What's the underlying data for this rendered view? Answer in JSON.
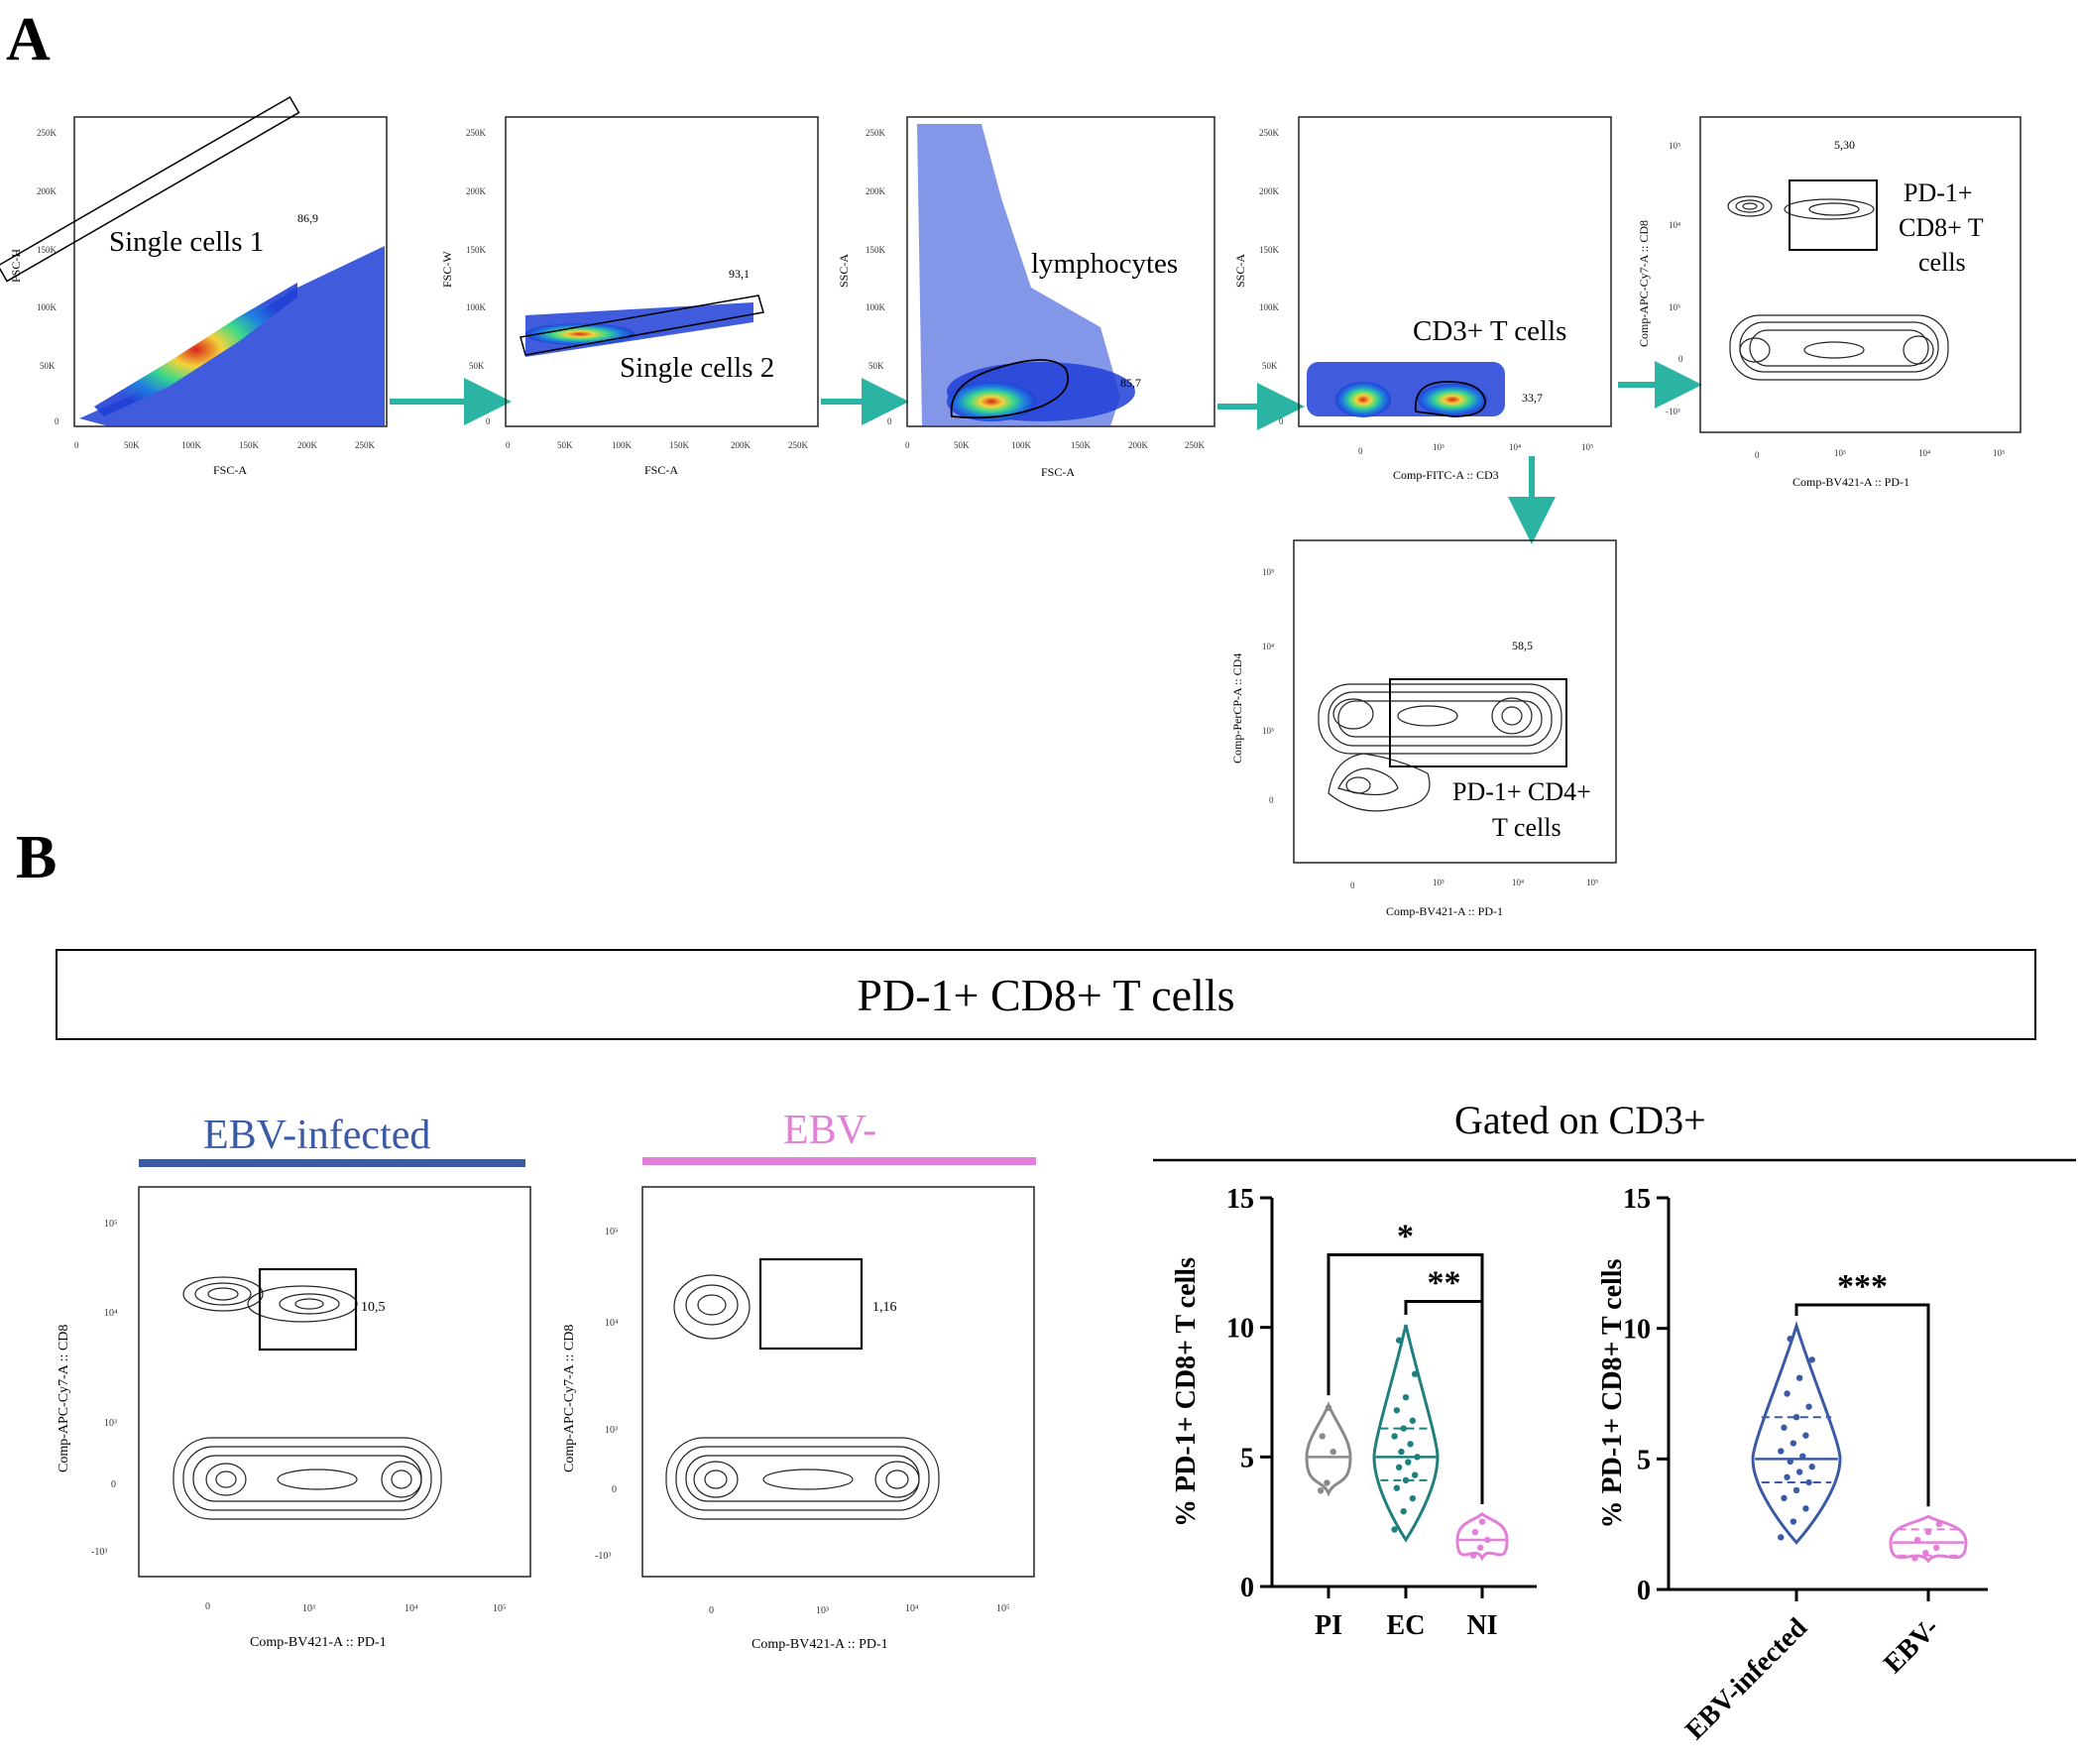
{
  "panel_labels": {
    "a": "A",
    "b": "B"
  },
  "colors": {
    "arrow": "#2bb3a3",
    "ebv_infected": "#3b5aa6",
    "ebv_negative": "#e27fd8",
    "pi": "#8a8a8a",
    "ec": "#1f7f7f",
    "ni": "#e27fd8"
  },
  "gating": {
    "plot1": {
      "y_label": "FSC-H",
      "x_label": "FSC-A",
      "gate_label": "Single cells 1",
      "gate_value": "86,9",
      "y_ticks": [
        "250K",
        "200K",
        "150K",
        "100K",
        "50K",
        "0"
      ],
      "x_ticks": [
        "0",
        "50K",
        "100K",
        "150K",
        "200K",
        "250K"
      ]
    },
    "plot2": {
      "y_label": "FSC-W",
      "x_label": "FSC-A",
      "gate_label": "Single cells 2",
      "gate_value": "93,1",
      "y_ticks": [
        "250K",
        "200K",
        "150K",
        "100K",
        "50K",
        "0"
      ],
      "x_ticks": [
        "0",
        "50K",
        "100K",
        "150K",
        "200K",
        "250K"
      ]
    },
    "plot3": {
      "y_label": "SSC-A",
      "x_label": "FSC-A",
      "gate_label": "lymphocytes",
      "gate_value": "85,7",
      "y_ticks": [
        "250K",
        "200K",
        "150K",
        "100K",
        "50K",
        "0"
      ],
      "x_ticks": [
        "0",
        "50K",
        "100K",
        "150K",
        "200K",
        "250K"
      ]
    },
    "plot4": {
      "y_label": "SSC-A",
      "x_label": "Comp-FITC-A :: CD3",
      "gate_label": "CD3+ T cells",
      "gate_value": "33,7",
      "y_ticks": [
        "250K",
        "200K",
        "150K",
        "100K",
        "50K",
        "0"
      ],
      "x_ticks": [
        "0",
        "10³",
        "10⁴",
        "10⁵"
      ]
    },
    "plot5": {
      "y_label": "Comp-APC-Cy7-A :: CD8",
      "x_label": "Comp-BV421-A :: PD-1",
      "gate_label_lines": [
        "PD-1+",
        "CD8+ T",
        "cells"
      ],
      "gate_value": "5,30",
      "y_ticks": [
        "10⁵",
        "10⁴",
        "10³",
        "0",
        "-10³"
      ],
      "x_ticks": [
        "0",
        "10³",
        "10⁴",
        "10⁵"
      ]
    },
    "plot6": {
      "y_label": "Comp-PerCP-A :: CD4",
      "x_label": "Comp-BV421-A :: PD-1",
      "gate_label_lines": [
        "PD-1+ CD4+",
        "T cells"
      ],
      "gate_value": "58,5",
      "y_ticks": [
        "10⁵",
        "10⁴",
        "10³",
        "0"
      ],
      "x_ticks": [
        "0",
        "10³",
        "10⁴",
        "10⁵"
      ]
    }
  },
  "panel_b": {
    "title": "PD-1+ CD8+ T cells",
    "ebv_infected_header": "EBV-infected",
    "ebv_negative_header": "EBV-",
    "gated_on": "Gated on CD3+",
    "flow_infected": {
      "y_label": "Comp-APC-Cy7-A :: CD8",
      "x_label": "Comp-BV421-A :: PD-1",
      "gate_value": "10,5",
      "y_ticks": [
        "10⁵",
        "10⁴",
        "10³",
        "0",
        "-10³"
      ],
      "x_ticks": [
        "0",
        "10³",
        "10⁴",
        "10⁵"
      ]
    },
    "flow_negative": {
      "y_label": "Comp-APC-Cy7-A :: CD8",
      "x_label": "Comp-BV421-A :: PD-1",
      "gate_value": "1,16",
      "y_ticks": [
        "10⁵",
        "10⁴",
        "10³",
        "0",
        "-10³"
      ],
      "x_ticks": [
        "0",
        "10³",
        "10⁴",
        "10⁵"
      ]
    }
  },
  "chart_data": [
    {
      "type": "violin",
      "title": "",
      "ylabel": "% PD-1+ CD8+ T cells",
      "ylim": [
        0,
        15
      ],
      "yticks": [
        0,
        5,
        10,
        15
      ],
      "categories": [
        "PI",
        "EC",
        "NI"
      ],
      "series": [
        {
          "name": "PI",
          "min": 3.6,
          "max": 7.0,
          "median": 5.0,
          "points": [
            3.7,
            4.0,
            5.2,
            5.8,
            6.9
          ]
        },
        {
          "name": "EC",
          "min": 1.8,
          "max": 10.1,
          "median": 5.0,
          "q1": 4.1,
          "q3": 6.1,
          "points": [
            2.2,
            2.9,
            3.4,
            3.8,
            4.1,
            4.3,
            4.6,
            4.8,
            5.0,
            5.2,
            5.5,
            5.8,
            6.1,
            6.4,
            6.8,
            7.3,
            8.2,
            9.5
          ]
        },
        {
          "name": "NI",
          "min": 1.1,
          "max": 2.8,
          "median": 1.8,
          "points": [
            1.2,
            1.5,
            1.8,
            2.1,
            2.5
          ]
        }
      ],
      "annotations": [
        {
          "from": "PI",
          "to": "NI",
          "label": "*",
          "y": 12.8
        },
        {
          "from": "EC",
          "to": "NI",
          "label": "**",
          "y": 11.0
        }
      ]
    },
    {
      "type": "violin",
      "title": "",
      "ylabel": "% PD-1+ CD8+ T cells",
      "ylim": [
        0,
        15
      ],
      "yticks": [
        0,
        5,
        10,
        15
      ],
      "categories": [
        "EBV-infected",
        "EBV-"
      ],
      "series": [
        {
          "name": "EBV-infected",
          "min": 1.8,
          "max": 10.1,
          "median": 5.0,
          "q1": 4.1,
          "q3": 6.6,
          "points": [
            2.0,
            2.6,
            3.1,
            3.5,
            3.8,
            4.1,
            4.3,
            4.5,
            4.7,
            4.9,
            5.1,
            5.3,
            5.6,
            5.9,
            6.2,
            6.6,
            7.0,
            7.5,
            8.1,
            8.8,
            9.6
          ]
        },
        {
          "name": "EBV-",
          "min": 1.1,
          "max": 2.8,
          "median": 1.8,
          "q1": 1.3,
          "q3": 2.3,
          "points": [
            1.2,
            1.4,
            1.6,
            1.9,
            2.2,
            2.5
          ]
        }
      ],
      "annotations": [
        {
          "from": "EBV-infected",
          "to": "EBV-",
          "label": "***",
          "y": 10.9
        }
      ]
    }
  ]
}
